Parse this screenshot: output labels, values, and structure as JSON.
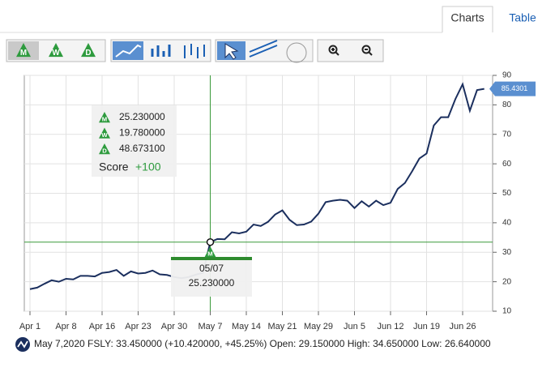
{
  "tabs": [
    "Charts",
    "Table"
  ],
  "toolbar": {
    "frequency_buttons": [
      "M",
      "W",
      "D"
    ]
  },
  "chart_data": {
    "type": "line",
    "categories": [
      "Apr 1",
      null,
      null,
      null,
      null,
      "Apr 8",
      null,
      null,
      null,
      null,
      "Apr 16",
      null,
      null,
      null,
      null,
      "Apr 23",
      null,
      null,
      null,
      null,
      "Apr 30",
      null,
      null,
      null,
      null,
      "May 7",
      null,
      null,
      null,
      null,
      "May 14",
      null,
      null,
      null,
      null,
      "May 21",
      null,
      null,
      null,
      null,
      "May 29",
      null,
      null,
      null,
      null,
      "Jun 5",
      null,
      null,
      null,
      null,
      "Jun 12",
      null,
      null,
      null,
      null,
      "Jun 19",
      null,
      null,
      null,
      null,
      "Jun 26",
      null,
      null,
      null
    ],
    "values": [
      17.5,
      18,
      19.3,
      20.5,
      20,
      21,
      20.8,
      22,
      22,
      21.8,
      23,
      23.3,
      24,
      22,
      23.5,
      22.8,
      23,
      23.8,
      22.5,
      22.3,
      21.6,
      21.2,
      21.6,
      22.4,
      23.03,
      33.45,
      34.5,
      34.4,
      36.8,
      36.4,
      37,
      39.4,
      38.9,
      40.3,
      42.8,
      44.2,
      41,
      39.2,
      39.4,
      40.4,
      43.1,
      47,
      47.5,
      47.8,
      47.5,
      45,
      47.3,
      45.5,
      47.5,
      46,
      46.8,
      51.5,
      53.5,
      57.5,
      61.8,
      63.5,
      73,
      75.8,
      75.8,
      82,
      87,
      78,
      85,
      85.4301
    ],
    "color": "#1b2f5e",
    "ylim": [
      10,
      90
    ],
    "yticks": [
      10,
      20,
      30,
      40,
      50,
      60,
      70,
      80,
      90
    ],
    "y_axis_side": "right",
    "grid": true
  },
  "indicator_tooltip": {
    "rows": [
      {
        "icon": "M",
        "value": "25.230000"
      },
      {
        "icon": "W",
        "value": "19.780000"
      },
      {
        "icon": "D",
        "value": "48.673100"
      }
    ],
    "score_label": "Score",
    "score": "+100"
  },
  "crosshair_label": {
    "icon": "M",
    "date": "05/07",
    "value": "25.230000"
  },
  "footer": "May 7,2020 FSLY: 33.450000 (+10.420000, +45.25%) Open: 29.150000 High: 34.650000 Low: 26.640000"
}
